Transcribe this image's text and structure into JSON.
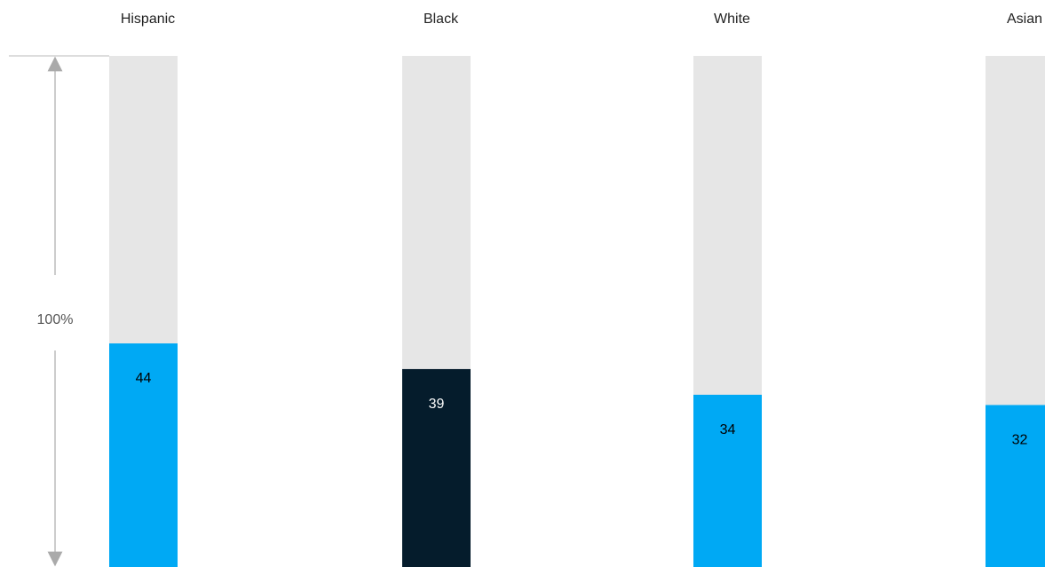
{
  "chart_data": {
    "type": "bar",
    "categories": [
      "Hispanic",
      "Black",
      "White",
      "Asian"
    ],
    "values": [
      44,
      39,
      34,
      32
    ],
    "colors": [
      "#00a9f4",
      "#051c2c",
      "#00a9f4",
      "#00a9f4"
    ],
    "label_colors": [
      "#000000",
      "#ffffff",
      "#000000",
      "#000000"
    ],
    "background_color": "#e6e6e6",
    "ylim": [
      0,
      100
    ],
    "axis_label": "100%"
  }
}
